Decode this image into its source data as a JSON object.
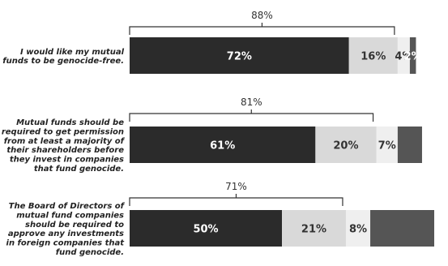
{
  "chart_data": {
    "type": "bar",
    "orientation": "horizontal",
    "stacked": true,
    "categories": [
      [
        "I would like my mutual",
        "funds to be genocide-free."
      ],
      [
        "Mutual funds should be",
        "required to get permission",
        "from at least a majority of",
        "their shareholders before",
        "they invest in companies",
        "that fund genocide."
      ],
      [
        "The Board of Directors of",
        "mutual fund companies",
        "should be required to",
        "approve any investments",
        "in foreign companies that",
        "fund genocide."
      ]
    ],
    "segments": [
      [
        {
          "value": 72,
          "label": "72%"
        },
        {
          "value": 16,
          "label": "16%"
        },
        {
          "value": 4,
          "label": "4%"
        },
        {
          "value": 2,
          "label": "2%"
        }
      ],
      [
        {
          "value": 61,
          "label": "61%"
        },
        {
          "value": 20,
          "label": "20%"
        },
        {
          "value": 7,
          "label": "7%"
        },
        {
          "value": 8,
          "label": ""
        }
      ],
      [
        {
          "value": 50,
          "label": "50%"
        },
        {
          "value": 21,
          "label": "21%"
        },
        {
          "value": 8,
          "label": "8%"
        },
        {
          "value": 21,
          "label": ""
        }
      ]
    ],
    "bracket_totals": [
      "88%",
      "81%",
      "71%"
    ],
    "colors": [
      "#2b2b2b",
      "#d9d9d9",
      "#efefef",
      "#555555"
    ],
    "label_colors": [
      "#ffffff",
      "#333333",
      "#333333",
      "#ffffff"
    ],
    "xlim": [
      0,
      100
    ],
    "grid": false,
    "legend": "none"
  }
}
